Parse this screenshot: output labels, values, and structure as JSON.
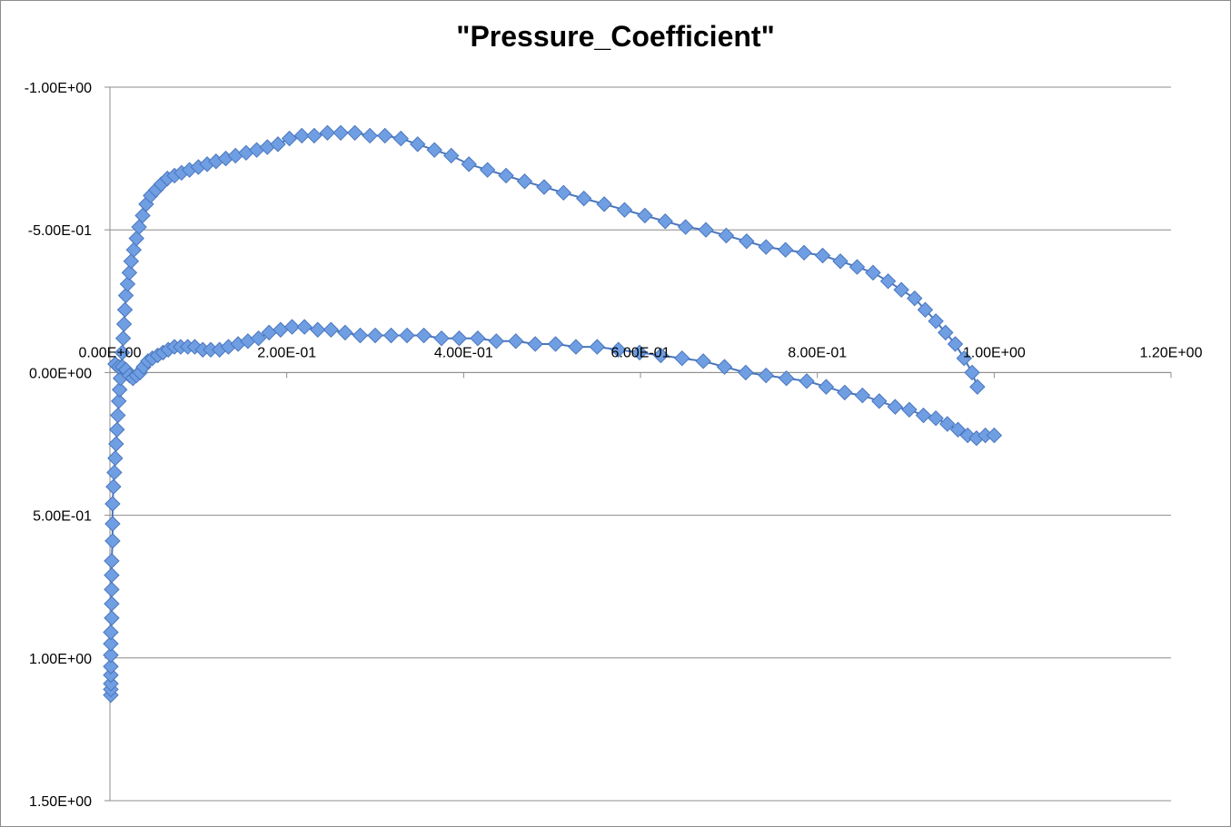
{
  "chart_data": {
    "type": "scatter",
    "title": "\"Pressure_Coefficient\"",
    "xlabel": "",
    "ylabel": "",
    "xlim": [
      0,
      1.2
    ],
    "ylim": [
      -1.0,
      1.5
    ],
    "y_reversed": true,
    "x_axis_crosses_y": 0,
    "grid": "horizontal",
    "legend": "none",
    "x_ticks": [
      {
        "value": 0.0,
        "label": "0.00E+00"
      },
      {
        "value": 0.2,
        "label": "2.00E-01"
      },
      {
        "value": 0.4,
        "label": "4.00E-01"
      },
      {
        "value": 0.6,
        "label": "6.00E-01"
      },
      {
        "value": 0.8,
        "label": "8.00E-01"
      },
      {
        "value": 1.0,
        "label": "1.00E+00"
      },
      {
        "value": 1.2,
        "label": "1.20E+00"
      }
    ],
    "y_ticks": [
      {
        "value": -1.0,
        "label": "-1.00E+00"
      },
      {
        "value": -0.5,
        "label": "-5.00E-01"
      },
      {
        "value": 0.0,
        "label": "0.00E+00"
      },
      {
        "value": 0.5,
        "label": "5.00E-01"
      },
      {
        "value": 1.0,
        "label": "1.00E+00"
      },
      {
        "value": 1.5,
        "label": "1.50E+00"
      }
    ],
    "marker": "diamond",
    "colors": {
      "marker_fill": "#6f9ee3",
      "marker_stroke": "#4a76bd",
      "line": "#4a76bd",
      "grid": "#8c8c8c",
      "axis": "#8c8c8c"
    },
    "series": [
      {
        "segments": [
          {
            "x": [
              0.001,
              0.001,
              0.001,
              0.001,
              0.001,
              0.001,
              0.001,
              0.001,
              0.002,
              0.002,
              0.002,
              0.002,
              0.002,
              0.003,
              0.003,
              0.003,
              0.004,
              0.005,
              0.006,
              0.007,
              0.008,
              0.009,
              0.01,
              0.011,
              0.012,
              0.013,
              0.014,
              0.015,
              0.016,
              0.017,
              0.018,
              0.02,
              0.022,
              0.024,
              0.027,
              0.03,
              0.033,
              0.037,
              0.041,
              0.046,
              0.052,
              0.058,
              0.065,
              0.073,
              0.081,
              0.09,
              0.1,
              0.11,
              0.12,
              0.131,
              0.142,
              0.154,
              0.166,
              0.178,
              0.19,
              0.203,
              0.217,
              0.231,
              0.246,
              0.261,
              0.277,
              0.294,
              0.311,
              0.329,
              0.348,
              0.367,
              0.386,
              0.406,
              0.427,
              0.448,
              0.469,
              0.491,
              0.513,
              0.536,
              0.559,
              0.582,
              0.605,
              0.628,
              0.651,
              0.674,
              0.697,
              0.72,
              0.742,
              0.764,
              0.785,
              0.806,
              0.826,
              0.845,
              0.863,
              0.88,
              0.895,
              0.91,
              0.922,
              0.934,
              0.945,
              0.956,
              0.966,
              0.975,
              0.981
            ],
            "y": [
              1.13,
              1.11,
              1.09,
              1.06,
              1.03,
              0.99,
              0.95,
              0.91,
              0.86,
              0.81,
              0.76,
              0.71,
              0.66,
              0.59,
              0.53,
              0.46,
              0.4,
              0.35,
              0.3,
              0.25,
              0.2,
              0.15,
              0.1,
              0.06,
              0.02,
              -0.02,
              -0.07,
              -0.12,
              -0.17,
              -0.22,
              -0.27,
              -0.31,
              -0.35,
              -0.39,
              -0.43,
              -0.47,
              -0.51,
              -0.55,
              -0.59,
              -0.62,
              -0.64,
              -0.66,
              -0.68,
              -0.69,
              -0.7,
              -0.71,
              -0.72,
              -0.73,
              -0.74,
              -0.75,
              -0.76,
              -0.77,
              -0.78,
              -0.79,
              -0.8,
              -0.82,
              -0.83,
              -0.83,
              -0.84,
              -0.84,
              -0.84,
              -0.83,
              -0.83,
              -0.82,
              -0.8,
              -0.78,
              -0.76,
              -0.73,
              -0.71,
              -0.69,
              -0.67,
              -0.65,
              -0.63,
              -0.61,
              -0.59,
              -0.57,
              -0.55,
              -0.53,
              -0.51,
              -0.5,
              -0.48,
              -0.46,
              -0.44,
              -0.43,
              -0.42,
              -0.41,
              -0.39,
              -0.37,
              -0.35,
              -0.32,
              -0.29,
              -0.26,
              -0.22,
              -0.18,
              -0.14,
              -0.1,
              -0.05,
              0.0,
              0.05
            ]
          },
          {
            "x": [
              0.006,
              0.01,
              0.014,
              0.018,
              0.022,
              0.026,
              0.03,
              0.034,
              0.038,
              0.043,
              0.048,
              0.054,
              0.06,
              0.066,
              0.073,
              0.08,
              0.088,
              0.096,
              0.105,
              0.114,
              0.124,
              0.134,
              0.145,
              0.156,
              0.168,
              0.18,
              0.193,
              0.206,
              0.22,
              0.235,
              0.25,
              0.266,
              0.283,
              0.3,
              0.318,
              0.336,
              0.355,
              0.375,
              0.395,
              0.416,
              0.437,
              0.459,
              0.481,
              0.504,
              0.527,
              0.551,
              0.575,
              0.599,
              0.623,
              0.647,
              0.671,
              0.695,
              0.719,
              0.742,
              0.765,
              0.788,
              0.81,
              0.831,
              0.851,
              0.87,
              0.888,
              0.904,
              0.92,
              0.934,
              0.947,
              0.959,
              0.97,
              0.98,
              0.99,
              1.0
            ],
            "y": [
              -0.03,
              -0.02,
              -0.02,
              -0.01,
              0.01,
              0.02,
              0.01,
              0.0,
              -0.02,
              -0.04,
              -0.05,
              -0.06,
              -0.07,
              -0.08,
              -0.09,
              -0.09,
              -0.09,
              -0.09,
              -0.08,
              -0.08,
              -0.08,
              -0.09,
              -0.1,
              -0.11,
              -0.12,
              -0.14,
              -0.15,
              -0.16,
              -0.16,
              -0.15,
              -0.15,
              -0.14,
              -0.13,
              -0.13,
              -0.13,
              -0.13,
              -0.13,
              -0.12,
              -0.12,
              -0.12,
              -0.11,
              -0.11,
              -0.1,
              -0.1,
              -0.09,
              -0.09,
              -0.08,
              -0.07,
              -0.06,
              -0.05,
              -0.04,
              -0.02,
              0.0,
              0.01,
              0.02,
              0.03,
              0.05,
              0.07,
              0.08,
              0.1,
              0.12,
              0.13,
              0.15,
              0.16,
              0.18,
              0.2,
              0.22,
              0.23,
              0.22,
              0.22
            ]
          }
        ]
      }
    ]
  }
}
